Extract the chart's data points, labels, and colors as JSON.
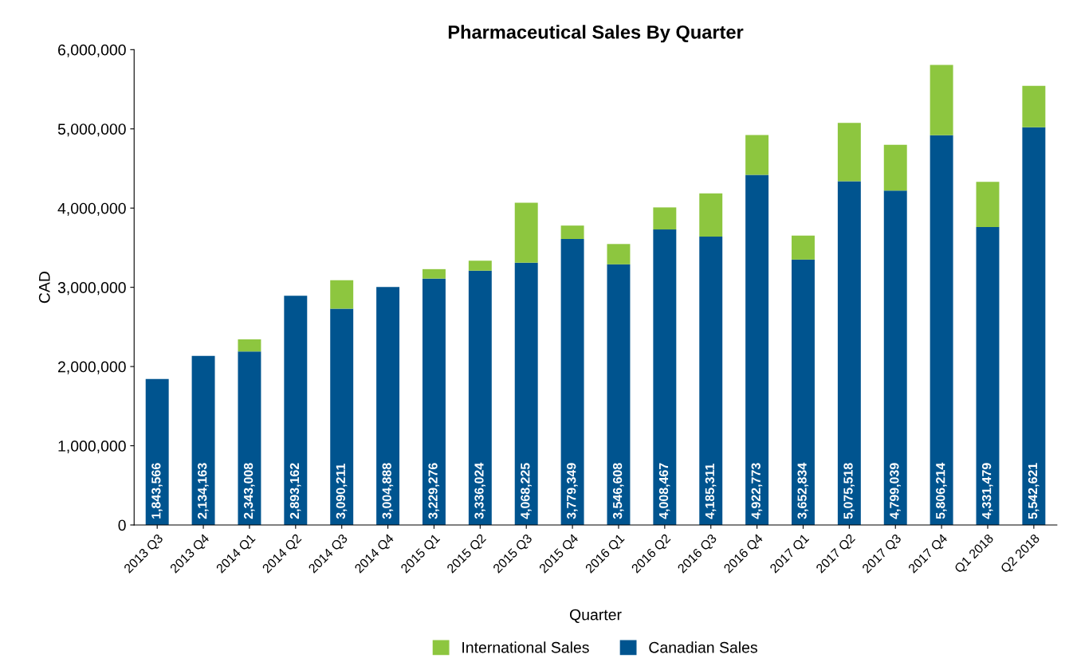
{
  "chart_data": {
    "type": "bar",
    "title": "Pharmaceutical Sales By Quarter",
    "xlabel": "Quarter",
    "ylabel": "CAD",
    "categories": [
      "2013 Q3",
      "2013 Q4",
      "2014 Q1",
      "2014 Q2",
      "2014 Q3",
      "2014 Q4",
      "2015 Q1",
      "2015 Q2",
      "2015 Q3",
      "2015 Q4",
      "2016 Q1",
      "2016 Q2",
      "2016 Q3",
      "2016 Q4",
      "2017 Q1",
      "2017 Q2",
      "2017 Q3",
      "2017 Q4",
      "Q1 2018",
      "Q2 2018"
    ],
    "stacked": true,
    "series": [
      {
        "name": "Canadian Sales",
        "color": "#00548f",
        "values": [
          1843566,
          2134163,
          2190000,
          2893162,
          2730000,
          3004888,
          3110000,
          3210000,
          3310000,
          3610000,
          3290000,
          3730000,
          3640000,
          4420000,
          3350000,
          4340000,
          4220000,
          4920000,
          3760000,
          5020000
        ]
      },
      {
        "name": "International Sales",
        "color": "#8dc63f",
        "values": [
          0,
          0,
          153008,
          0,
          360211,
          0,
          119276,
          126024,
          758225,
          169349,
          256608,
          278467,
          545311,
          502773,
          302834,
          735518,
          579039,
          886214,
          571479,
          522621
        ]
      }
    ],
    "totals": [
      "1,843,566",
      "2,134,163",
      "2,343,008",
      "2,893,162",
      "3,090,211",
      "3,004,888",
      "3,229,276",
      "3,336,024",
      "4,068,225",
      "3,779,349",
      "3,546,608",
      "4,008,467",
      "4,185,311",
      "4,922,773",
      "3,652,834",
      "5,075,518",
      "4,799,039",
      "5,806,214",
      "4,331,479",
      "5,542,621"
    ],
    "ylim": [
      0,
      6000000
    ],
    "yticks": [
      {
        "value": 0,
        "label": "0"
      },
      {
        "value": 1000000,
        "label": "1,000,000"
      },
      {
        "value": 2000000,
        "label": "2,000,000"
      },
      {
        "value": 3000000,
        "label": "3,000,000"
      },
      {
        "value": 4000000,
        "label": "4,000,000"
      },
      {
        "value": 5000000,
        "label": "5,000,000"
      },
      {
        "value": 6000000,
        "label": "6,000,000"
      }
    ],
    "legend": "bottom"
  }
}
